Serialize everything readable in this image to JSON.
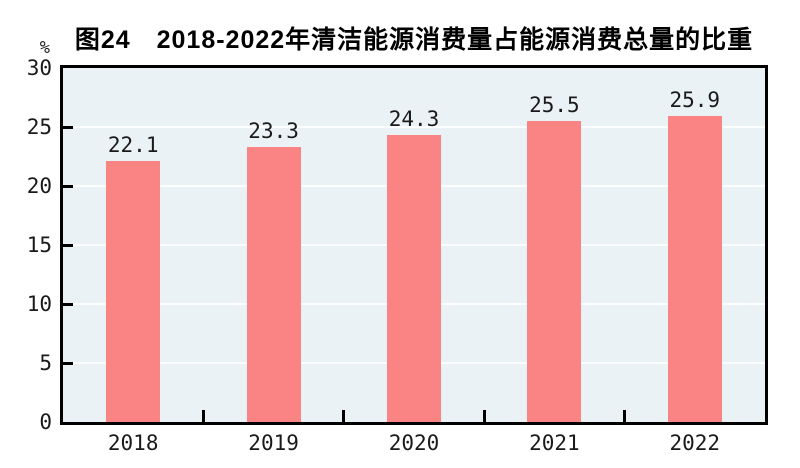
{
  "chart_data": {
    "type": "bar",
    "title": "图24　2018-2022年清洁能源消费量占能源消费总量的比重",
    "categories": [
      "2018",
      "2019",
      "2020",
      "2021",
      "2022"
    ],
    "values": [
      22.1,
      23.3,
      24.3,
      25.5,
      25.9
    ],
    "value_labels": [
      "22.1",
      "23.3",
      "24.3",
      "25.5",
      "25.9"
    ],
    "xlabel": "",
    "ylabel": "%",
    "ylim": [
      0,
      30
    ],
    "yticks": [
      0,
      5,
      10,
      15,
      20,
      25,
      30
    ],
    "grid": true,
    "legend": false,
    "colors": {
      "bar": "#FA8383",
      "plot_background": "#EAF2F6",
      "gridline": "#FFFFFF",
      "axis": "#000000",
      "text": "#1A1A1A",
      "title": "#000000"
    }
  }
}
